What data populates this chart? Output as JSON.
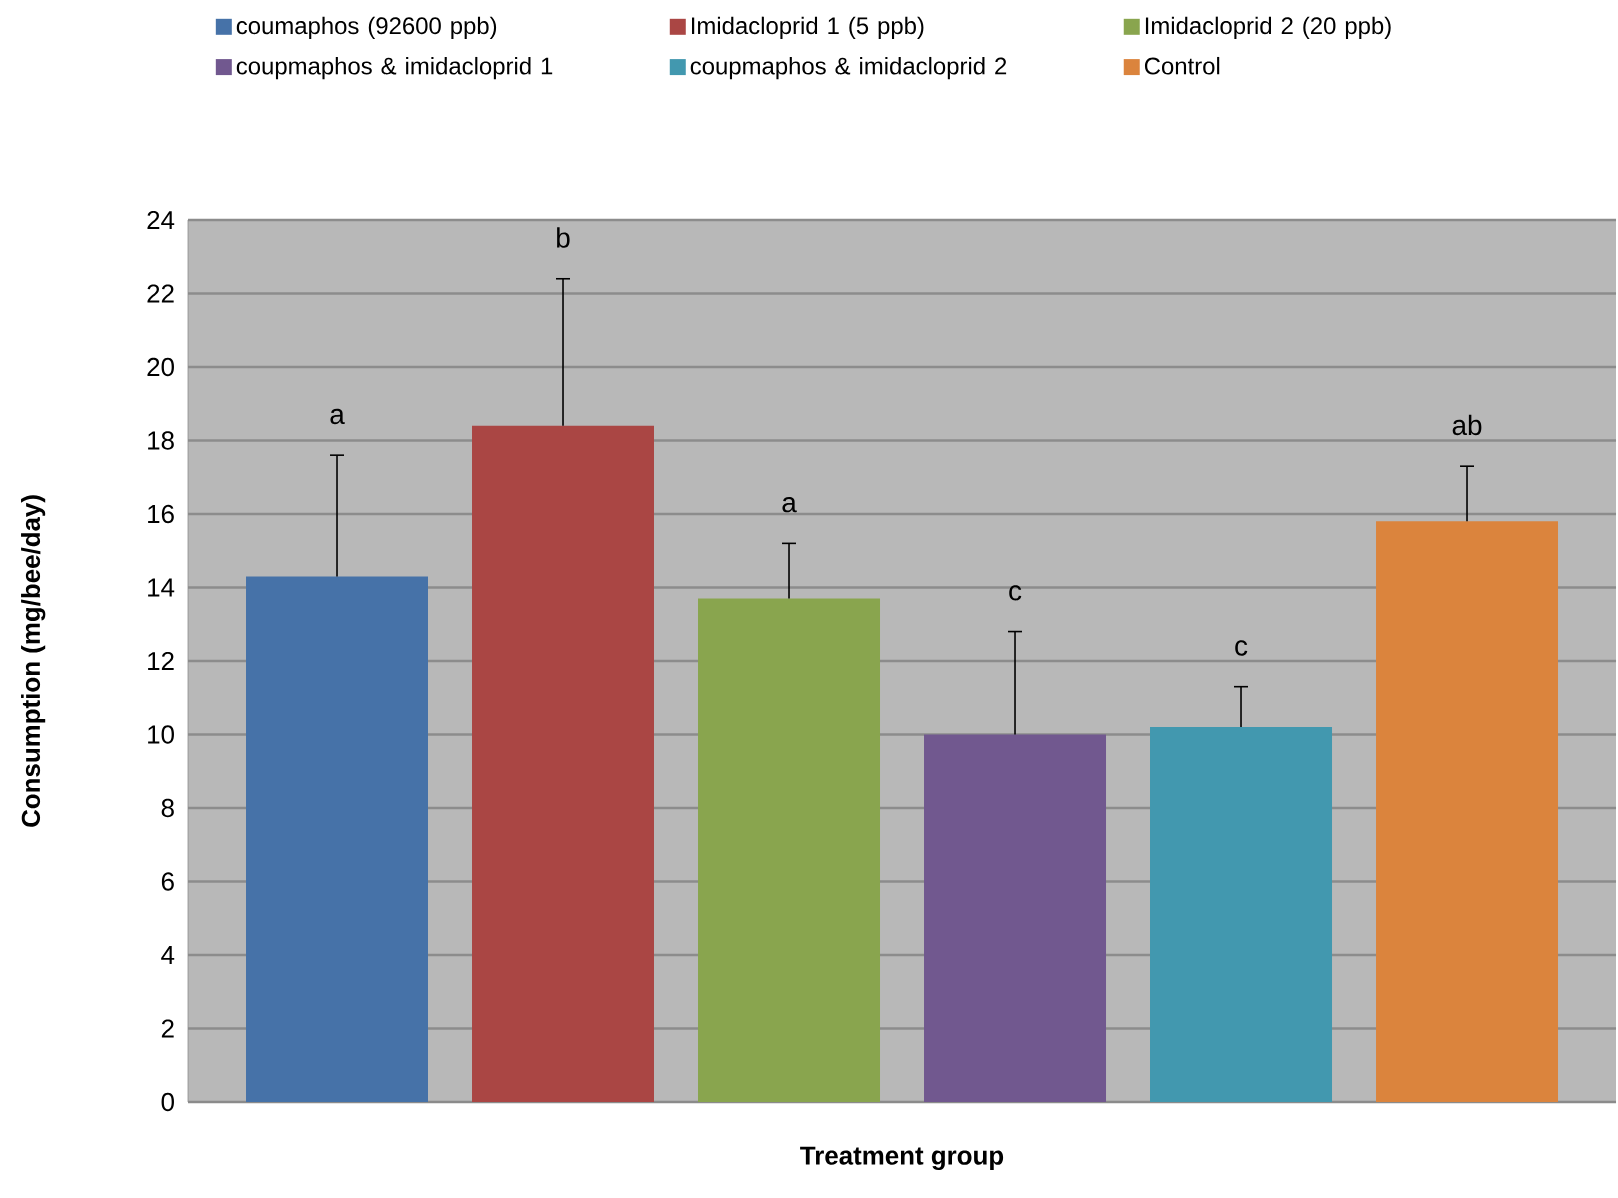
{
  "chart_data": {
    "type": "bar",
    "xlabel": "Treatment group",
    "ylabel": "Consumption (mg/bee/day)",
    "categories": [
      null
    ],
    "series": [
      {
        "name": "coumaphos (92600 ppb)",
        "color": "#4672a8",
        "values": [
          14.3
        ],
        "errors": [
          [
            14.3,
            17.6
          ]
        ]
      },
      {
        "name": "Imidacloprid 1 (5 ppb)",
        "color": "#aa4644",
        "values": [
          18.4
        ],
        "errors": [
          [
            18.4,
            22.4
          ]
        ]
      },
      {
        "name": "Imidacloprid 2 (20 ppb)",
        "color": "#89a54e",
        "values": [
          13.7
        ],
        "errors": [
          [
            13.7,
            15.2
          ]
        ]
      },
      {
        "name": "coupmaphos & imidacloprid 1",
        "color": "#71588f",
        "values": [
          10.0
        ],
        "errors": [
          [
            10.0,
            12.8
          ]
        ]
      },
      {
        "name": "coupmaphos & imidacloprid 2",
        "color": "#4298af",
        "values": [
          10.2
        ],
        "errors": [
          [
            10.2,
            11.3
          ]
        ]
      },
      {
        "name": "Control",
        "color": "#db843d",
        "values": [
          15.8
        ],
        "errors": [
          [
            15.8,
            17.3
          ]
        ]
      }
    ],
    "annotations": [
      "a",
      "b",
      "a",
      "c",
      "c",
      "ab"
    ],
    "ylim": [
      0,
      24
    ],
    "yticks": [
      0,
      2,
      4,
      6,
      8,
      10,
      12,
      14,
      16,
      18,
      20,
      22,
      24
    ],
    "grid": "y",
    "legend": "top"
  }
}
